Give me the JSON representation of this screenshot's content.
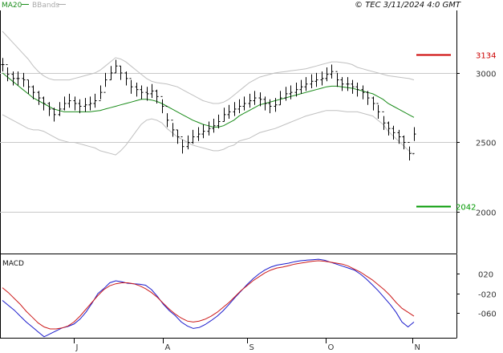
{
  "header": {
    "source_label": "© TEC 3/11/2024 4:0 GMT",
    "legend": [
      {
        "name": "MA20",
        "color": "#1a8c1a"
      },
      {
        "name": "BBands",
        "color": "#aaaaaa"
      }
    ]
  },
  "chart_data": [
    {
      "type": "ohlc",
      "ylim": [
        1700,
        3450
      ],
      "y_ticks": [
        "3000",
        "2500",
        "2000"
      ],
      "x_ticks": [
        "J",
        "A",
        "S",
        "O",
        "N"
      ],
      "grid": true,
      "levels": [
        {
          "label": "3134",
          "value": 3134,
          "color": "#cc0000"
        },
        {
          "label": "2042",
          "value": 2042,
          "color": "#009900"
        }
      ],
      "closes": [
        3060,
        2990,
        2960,
        2960,
        2950,
        2900,
        2860,
        2820,
        2780,
        2740,
        2700,
        2740,
        2780,
        2800,
        2780,
        2760,
        2770,
        2780,
        2800,
        2860,
        2950,
        3000,
        3050,
        3000,
        2960,
        2900,
        2880,
        2860,
        2850,
        2870,
        2830,
        2760,
        2660,
        2590,
        2540,
        2470,
        2500,
        2540,
        2560,
        2580,
        2600,
        2620,
        2650,
        2700,
        2720,
        2740,
        2760,
        2780,
        2800,
        2820,
        2810,
        2780,
        2760,
        2770,
        2820,
        2850,
        2860,
        2880,
        2900,
        2920,
        2940,
        2950,
        2960,
        2990,
        3010,
        2950,
        2920,
        2920,
        2900,
        2880,
        2860,
        2820,
        2780,
        2720,
        2640,
        2600,
        2570,
        2540,
        2500,
        2420,
        2560
      ],
      "highs": [
        3108,
        3040,
        3010,
        3010,
        3000,
        2950,
        2910,
        2870,
        2830,
        2790,
        2750,
        2790,
        2830,
        2850,
        2830,
        2810,
        2820,
        2830,
        2850,
        2910,
        3000,
        3050,
        3095,
        3050,
        3010,
        2950,
        2930,
        2910,
        2900,
        2920,
        2880,
        2810,
        2710,
        2640,
        2590,
        2520,
        2550,
        2590,
        2610,
        2630,
        2650,
        2670,
        2700,
        2750,
        2770,
        2790,
        2810,
        2830,
        2850,
        2870,
        2860,
        2830,
        2810,
        2820,
        2870,
        2900,
        2910,
        2930,
        2950,
        2970,
        2990,
        3000,
        3010,
        3040,
        3060,
        3000,
        2970,
        2970,
        2950,
        2930,
        2910,
        2870,
        2830,
        2770,
        2690,
        2650,
        2620,
        2590,
        2550,
        2470,
        2610
      ],
      "lows": [
        3010,
        2940,
        2910,
        2910,
        2900,
        2850,
        2810,
        2770,
        2730,
        2690,
        2650,
        2690,
        2730,
        2750,
        2730,
        2710,
        2720,
        2730,
        2750,
        2810,
        2900,
        2950,
        3000,
        2950,
        2910,
        2850,
        2830,
        2810,
        2800,
        2820,
        2780,
        2710,
        2610,
        2540,
        2490,
        2420,
        2450,
        2490,
        2510,
        2530,
        2550,
        2570,
        2600,
        2650,
        2670,
        2690,
        2710,
        2730,
        2750,
        2770,
        2760,
        2730,
        2710,
        2720,
        2770,
        2800,
        2810,
        2830,
        2850,
        2870,
        2890,
        2900,
        2910,
        2940,
        2960,
        2900,
        2870,
        2870,
        2850,
        2830,
        2810,
        2770,
        2730,
        2670,
        2590,
        2550,
        2520,
        2490,
        2450,
        2370,
        2510
      ],
      "ma20": [
        3000,
        2970,
        2940,
        2910,
        2880,
        2850,
        2820,
        2800,
        2780,
        2760,
        2740,
        2730,
        2720,
        2720,
        2720,
        2720,
        2720,
        2720,
        2725,
        2730,
        2740,
        2750,
        2760,
        2770,
        2780,
        2790,
        2800,
        2810,
        2810,
        2805,
        2795,
        2780,
        2760,
        2740,
        2720,
        2700,
        2680,
        2660,
        2645,
        2630,
        2620,
        2610,
        2610,
        2620,
        2640,
        2660,
        2690,
        2710,
        2730,
        2750,
        2770,
        2780,
        2790,
        2800,
        2810,
        2820,
        2830,
        2840,
        2850,
        2860,
        2870,
        2880,
        2890,
        2900,
        2905,
        2905,
        2900,
        2895,
        2890,
        2880,
        2870,
        2860,
        2850,
        2830,
        2810,
        2780,
        2760,
        2740,
        2720,
        2700,
        2680
      ],
      "bb_upper": [
        3300,
        3260,
        3220,
        3180,
        3140,
        3100,
        3050,
        3010,
        2980,
        2960,
        2950,
        2950,
        2950,
        2950,
        2960,
        2970,
        2980,
        2990,
        3000,
        3020,
        3050,
        3080,
        3110,
        3100,
        3080,
        3050,
        3020,
        2990,
        2960,
        2940,
        2930,
        2925,
        2920,
        2910,
        2900,
        2880,
        2860,
        2840,
        2820,
        2800,
        2790,
        2780,
        2780,
        2790,
        2810,
        2840,
        2870,
        2900,
        2930,
        2950,
        2970,
        2980,
        2990,
        3000,
        3005,
        3010,
        3015,
        3020,
        3025,
        3030,
        3040,
        3050,
        3060,
        3070,
        3080,
        3080,
        3075,
        3070,
        3060,
        3040,
        3030,
        3020,
        3010,
        3000,
        2990,
        2980,
        2975,
        2970,
        2965,
        2960,
        2950
      ],
      "bb_lower": [
        2700,
        2680,
        2660,
        2640,
        2620,
        2600,
        2590,
        2590,
        2580,
        2560,
        2540,
        2520,
        2510,
        2500,
        2500,
        2490,
        2480,
        2470,
        2460,
        2440,
        2430,
        2420,
        2410,
        2440,
        2480,
        2530,
        2580,
        2630,
        2660,
        2670,
        2660,
        2640,
        2600,
        2570,
        2540,
        2520,
        2500,
        2480,
        2470,
        2460,
        2450,
        2440,
        2440,
        2450,
        2470,
        2480,
        2510,
        2520,
        2530,
        2550,
        2570,
        2580,
        2590,
        2600,
        2615,
        2630,
        2645,
        2660,
        2675,
        2690,
        2700,
        2710,
        2720,
        2730,
        2730,
        2730,
        2725,
        2720,
        2720,
        2720,
        2710,
        2700,
        2690,
        2660,
        2630,
        2580,
        2545,
        2510,
        2475,
        2440,
        2410
      ]
    },
    {
      "type": "line",
      "title": "MACD",
      "ylim": [
        -110,
        60
      ],
      "y_ticks": [
        {
          "label": "020",
          "value": 20
        },
        {
          "label": "-020",
          "value": -20
        },
        {
          "label": "-060",
          "value": -60
        }
      ],
      "series": [
        {
          "color": "#1a1acc",
          "values": [
            -34,
            -44,
            -54,
            -66,
            -78,
            -88,
            -98,
            -108,
            -102,
            -96,
            -90,
            -87,
            -82,
            -72,
            -58,
            -40,
            -20,
            -10,
            2,
            6,
            4,
            1,
            0,
            -1,
            -3,
            -12,
            -26,
            -42,
            -55,
            -65,
            -78,
            -86,
            -91,
            -89,
            -83,
            -75,
            -66,
            -55,
            -42,
            -28,
            -15,
            -2,
            10,
            20,
            28,
            34,
            38,
            40,
            42,
            45,
            47,
            48,
            49,
            50,
            48,
            44,
            40,
            36,
            32,
            28,
            20,
            10,
            -2,
            -14,
            -28,
            -42,
            -58,
            -78,
            -88,
            -78
          ]
        },
        {
          "color": "#cc1a1a",
          "values": [
            -8,
            -18,
            -30,
            -42,
            -56,
            -68,
            -80,
            -88,
            -92,
            -92,
            -90,
            -86,
            -78,
            -66,
            -52,
            -38,
            -24,
            -12,
            -4,
            0,
            2,
            2,
            0,
            -4,
            -10,
            -18,
            -28,
            -40,
            -52,
            -62,
            -70,
            -76,
            -78,
            -76,
            -72,
            -66,
            -58,
            -48,
            -38,
            -26,
            -14,
            -4,
            6,
            14,
            22,
            28,
            32,
            34,
            37,
            40,
            42,
            44,
            46,
            47,
            46,
            44,
            42,
            40,
            36,
            30,
            24,
            16,
            8,
            -2,
            -12,
            -24,
            -38,
            -50,
            -58,
            -66
          ]
        }
      ]
    }
  ]
}
